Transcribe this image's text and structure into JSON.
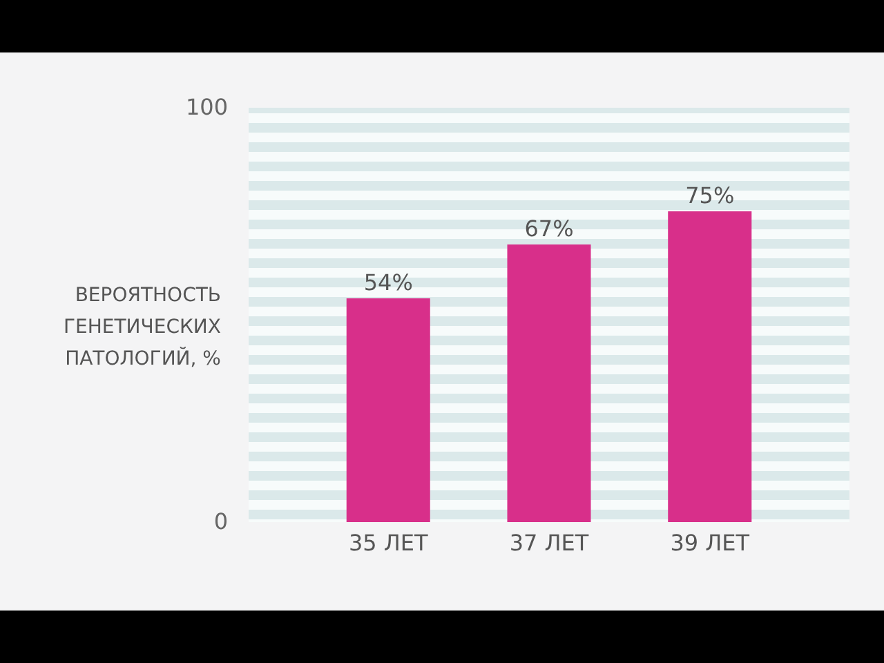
{
  "chart_data": {
    "type": "bar",
    "ylabel": "ВЕРОЯТНОСТЬ ГЕНЕТИЧЕСКИХ ПАТОЛОГИЙ, %",
    "categories": [
      "35 ЛЕТ",
      "37 ЛЕТ",
      "39 ЛЕТ"
    ],
    "values": [
      54,
      67,
      75
    ],
    "value_labels": [
      "54%",
      "67%",
      "75%"
    ],
    "color": "#d82f8a",
    "ylim": [
      0,
      100
    ],
    "yticks": [
      0,
      100
    ]
  }
}
